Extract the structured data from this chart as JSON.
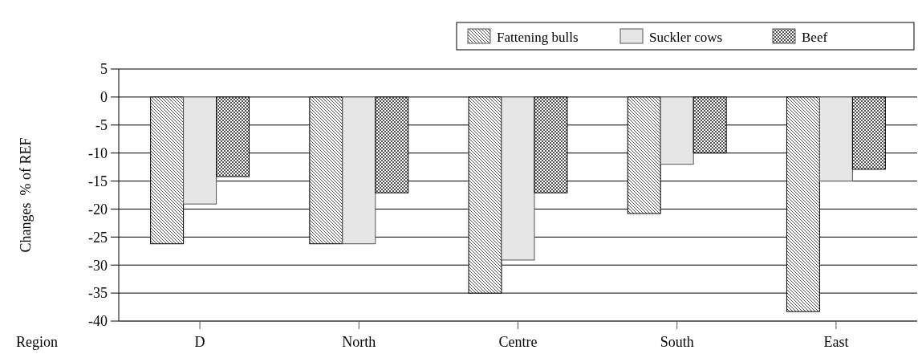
{
  "chart_data": {
    "type": "bar",
    "ylabel": "Changes  % of REF",
    "xlabel": "Region",
    "categories": [
      "D",
      "North",
      "Centre",
      "South",
      "East"
    ],
    "series": [
      {
        "name": "Fattening bulls",
        "color": "#000000",
        "values": [
          -26.2,
          -26.2,
          -35,
          -20.8,
          -38.3
        ]
      },
      {
        "name": "Suckler cows",
        "color": "#e6e6e6",
        "values": [
          -19.1,
          -26.2,
          -29.1,
          -12,
          -15
        ]
      },
      {
        "name": "Beef",
        "color": "#000000",
        "values": [
          -14.2,
          -17.1,
          -17.1,
          -10,
          -12.9
        ]
      }
    ],
    "ylim": [
      -40,
      5
    ],
    "yticks": [
      5,
      0,
      -5,
      -10,
      -15,
      -20,
      -25,
      -30,
      -35,
      -40
    ],
    "grid": "y",
    "legend": "top right"
  }
}
